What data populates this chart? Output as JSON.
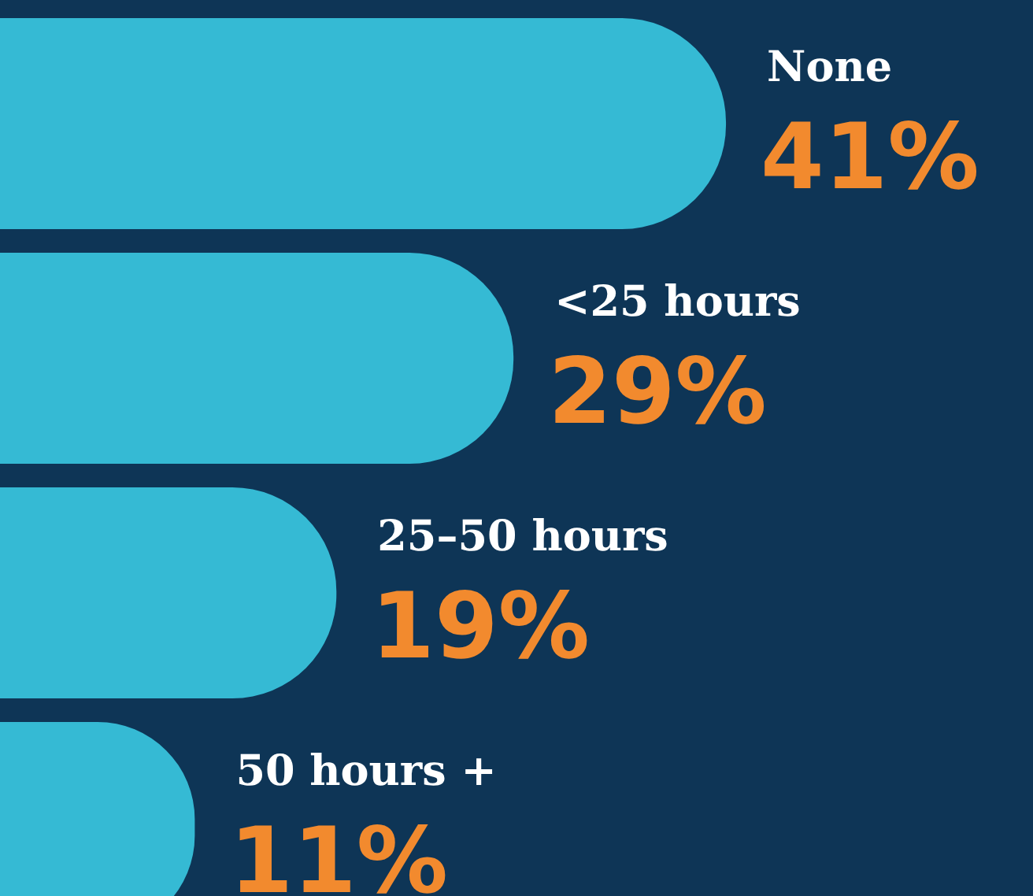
{
  "chart_data": {
    "type": "bar",
    "orientation": "horizontal",
    "categories": [
      "None",
      "<25 hours",
      "25–50 hours",
      "50 hours +"
    ],
    "values": [
      41,
      29,
      19,
      11
    ],
    "value_labels": [
      "41%",
      "29%",
      "19%",
      "11%"
    ],
    "color": "#35bad4",
    "legend": false
  }
}
